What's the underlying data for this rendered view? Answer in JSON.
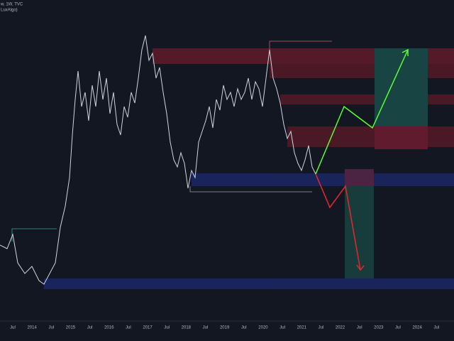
{
  "header": {
    "symbol_line": "w, 1W, TVC",
    "indicator_line": "LuxAlgo)"
  },
  "x_axis": {
    "labels": [
      "Jul",
      "2014",
      "Jul",
      "2015",
      "Jul",
      "2016",
      "Jul",
      "2017",
      "Jul",
      "2018",
      "Jul",
      "2019",
      "Jul",
      "2020",
      "Jul",
      "2021",
      "Jul",
      "2022",
      "Jul",
      "2023",
      "Jul",
      "2024",
      "Jul"
    ]
  }
}
